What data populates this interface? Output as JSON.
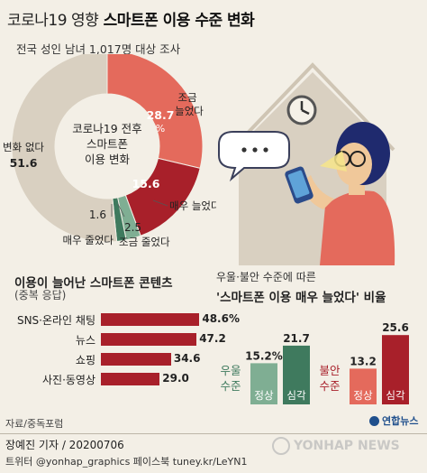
{
  "header": {
    "title_light": "코로나19 영향",
    "title_strong": "스마트폰 이용 수준 변화",
    "subtitle": "전국 성인 남녀 1,017명 대상 조사"
  },
  "donut": {
    "center_lines": [
      "코로나19 전후",
      "스마트폰",
      "이용 변화"
    ],
    "labels": {
      "slight_up_val": "28.7",
      "slight_up_pct": "%",
      "slight_up_name": "조금 늘었다",
      "much_up_val": "15.6",
      "much_up_name": "매우 늘었다",
      "slight_down_val": "2.5",
      "slight_down_name": "조금 줄었다",
      "much_down_val": "1.6",
      "much_down_name": "매우 줄었다",
      "no_change_name": "변화 없다",
      "no_change_val": "51.6"
    }
  },
  "content_section": {
    "title": "이용이 늘어난 스마트폰 콘텐츠",
    "subtitle": "(중복 응답)"
  },
  "ratio_section": {
    "title_line1": "우울·불안 수준에 따른",
    "title_line2": "'스마트폰 이용 매우 늘었다' 비율",
    "group1_name_line1": "우울",
    "group1_name_line2": "수준",
    "group2_name_line1": "불안",
    "group2_name_line2": "수준"
  },
  "source": "자료/중독포럼",
  "byline": "장예진 기자 / 20200706",
  "social": "트위터 @yonhap_graphics  페이스북 tuney.kr/LeYN1",
  "logo_small": "연합뉴스",
  "watermark": "YONHAP NEWS",
  "colors": {
    "dark_red": "#a8202a",
    "salmon": "#e46a5c",
    "dark_green": "#3f7a5e",
    "light_green": "#7fae93",
    "beige": "#d9d0c1",
    "mid_beige": "#b9ae9c",
    "background": "#f3efe6"
  },
  "icons": [
    "phone-user-illustration",
    "house-icon",
    "clock-icon",
    "speech-bubble-icon",
    "yonhap-logo-icon"
  ],
  "chart_data": [
    {
      "type": "pie",
      "title": "코로나19 전후 스마트폰 이용 변화",
      "categories": [
        "조금 늘었다",
        "매우 늘었다",
        "조금 줄었다",
        "매우 줄었다",
        "변화 없다"
      ],
      "values": [
        28.7,
        15.6,
        2.5,
        1.6,
        51.6
      ],
      "colors": [
        "#e46a5c",
        "#a8202a",
        "#7fae93",
        "#3f7a5e",
        "#d9d0c1"
      ],
      "unit": "%"
    },
    {
      "type": "bar",
      "orientation": "horizontal",
      "title": "이용이 늘어난 스마트폰 콘텐츠",
      "categories": [
        "SNS·온라인 채팅",
        "뉴스",
        "쇼핑",
        "사진·동영상"
      ],
      "values": [
        48.6,
        47.2,
        34.6,
        29.0
      ],
      "value_labels": [
        "48.6%",
        "47.2",
        "34.6",
        "29.0"
      ]
    },
    {
      "type": "bar",
      "title": "'스마트폰 이용 매우 늘었다' 비율",
      "groups": [
        "우울 수준",
        "불안 수준"
      ],
      "categories": [
        "정상",
        "심각"
      ],
      "series": [
        {
          "name": "우울 수준",
          "values": [
            15.2,
            21.7
          ],
          "value_labels": [
            "15.2%",
            "21.7"
          ]
        },
        {
          "name": "불안 수준",
          "values": [
            13.2,
            25.6
          ],
          "value_labels": [
            "13.2",
            "25.6"
          ]
        }
      ]
    }
  ]
}
